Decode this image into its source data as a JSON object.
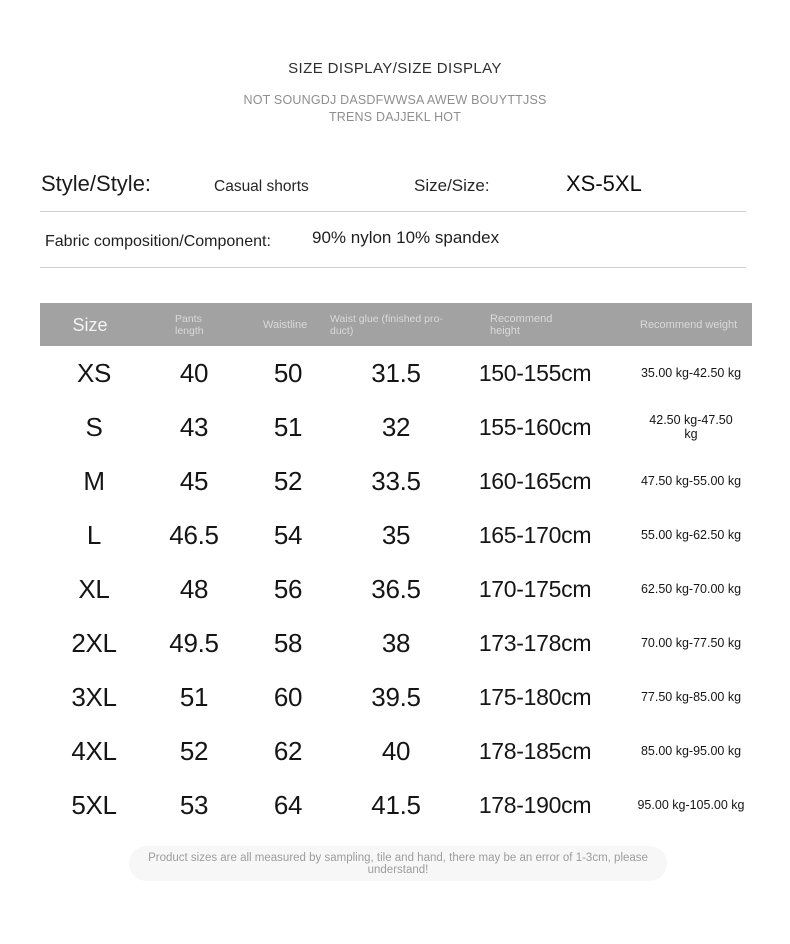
{
  "header": {
    "title": "SIZE DISPLAY/SIZE DISPLAY",
    "subtitle": "NOT SOUNGDJ DASDFWWSA  AWEW BOUYTTJSS\nTRENS DAJJEKL HOT"
  },
  "info": {
    "style_label": "Style/Style:",
    "style_value": "Casual shorts",
    "size_label": "Size/Size:",
    "size_value": "XS-5XL",
    "fabric_label": "Fabric composition/Component:",
    "fabric_value": "90% nylon 10% spandex"
  },
  "table": {
    "header": {
      "size": "Size",
      "pants": "Pants\nlength",
      "waistline": "Waistline",
      "glue": "Waist glue (finished pro-\nduct)",
      "height": "Recommend\nheight",
      "weight": "Recommend weight"
    },
    "rows": [
      {
        "size": "XS",
        "pants": "40",
        "waistline": "50",
        "glue": "31.5",
        "height": "150-155cm",
        "weight": "35.00 kg-42.50 kg"
      },
      {
        "size": "S",
        "pants": "43",
        "waistline": "51",
        "glue": "32",
        "height": "155-160cm",
        "weight": "42.50 kg-47.50\nkg"
      },
      {
        "size": "M",
        "pants": "45",
        "waistline": "52",
        "glue": "33.5",
        "height": "160-165cm",
        "weight": "47.50 kg-55.00 kg"
      },
      {
        "size": "L",
        "pants": "46.5",
        "waistline": "54",
        "glue": "35",
        "height": "165-170cm",
        "weight": "55.00 kg-62.50 kg"
      },
      {
        "size": "XL",
        "pants": "48",
        "waistline": "56",
        "glue": "36.5",
        "height": "170-175cm",
        "weight": "62.50 kg-70.00 kg"
      },
      {
        "size": "2XL",
        "pants": "49.5",
        "waistline": "58",
        "glue": "38",
        "height": "173-178cm",
        "weight": "70.00 kg-77.50 kg"
      },
      {
        "size": "3XL",
        "pants": "51",
        "waistline": "60",
        "glue": "39.5",
        "height": "175-180cm",
        "weight": "77.50 kg-85.00 kg"
      },
      {
        "size": "4XL",
        "pants": "52",
        "waistline": "62",
        "glue": "40",
        "height": "178-185cm",
        "weight": "85.00 kg-95.00 kg"
      },
      {
        "size": "5XL",
        "pants": "53",
        "waistline": "64",
        "glue": "41.5",
        "height": "178-190cm",
        "weight": "95.00 kg-105.00 kg"
      }
    ]
  },
  "footer": {
    "note": "Product sizes are all measured by sampling, tile and hand, there may be an error of 1-3cm, please understand!"
  },
  "colors": {
    "table_header_bg": "#a2a2a2",
    "table_header_text": "#d9d9d9",
    "body_text": "#151515",
    "muted_text": "#8e8e8e",
    "note_bg": "#f7f7f7",
    "divider": "#d2d2d2"
  }
}
